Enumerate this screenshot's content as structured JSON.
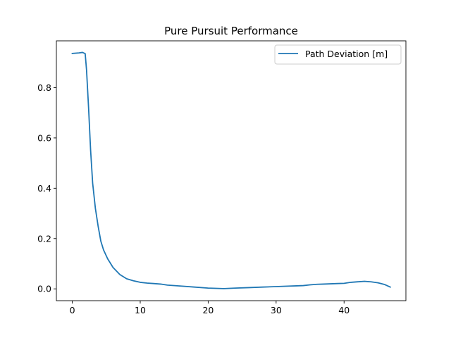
{
  "chart_data": {
    "type": "line",
    "title": "Pure Pursuit Performance",
    "xlabel": "",
    "ylabel": "",
    "xlim": [
      -2.34,
      49.1
    ],
    "ylim": [
      -0.047,
      0.986
    ],
    "xticks": [
      0,
      10,
      20,
      30,
      40
    ],
    "yticks": [
      0.0,
      0.2,
      0.4,
      0.6,
      0.8
    ],
    "ytick_labels": [
      "0.0",
      "0.2",
      "0.4",
      "0.6",
      "0.8"
    ],
    "grid": false,
    "legend": {
      "position": "top-right"
    },
    "series": [
      {
        "name": "Path Deviation [m]",
        "color": "#1f77b4",
        "x": [
          0,
          1,
          1.5,
          1.9,
          2.1,
          2.4,
          2.7,
          3.0,
          3.4,
          3.8,
          4.2,
          4.6,
          5.2,
          6.0,
          7.0,
          8.0,
          9.0,
          10.0,
          11.0,
          12.0,
          13.0,
          14.0,
          16.0,
          18.0,
          20.0,
          22.3,
          24.0,
          26.0,
          28.0,
          30.0,
          32.0,
          33.0,
          34.0,
          35.0,
          36.0,
          37.0,
          38.0,
          39.0,
          40.0,
          41.0,
          42.0,
          43.0,
          44.0,
          45.0,
          46.0,
          46.8
        ],
        "y": [
          0.936,
          0.938,
          0.94,
          0.935,
          0.87,
          0.72,
          0.55,
          0.42,
          0.32,
          0.25,
          0.19,
          0.155,
          0.12,
          0.085,
          0.057,
          0.04,
          0.032,
          0.026,
          0.023,
          0.021,
          0.019,
          0.015,
          0.011,
          0.007,
          0.003,
          0.001,
          0.003,
          0.005,
          0.007,
          0.009,
          0.011,
          0.012,
          0.013,
          0.016,
          0.018,
          0.019,
          0.02,
          0.021,
          0.022,
          0.026,
          0.028,
          0.03,
          0.028,
          0.024,
          0.017,
          0.007
        ]
      }
    ]
  }
}
